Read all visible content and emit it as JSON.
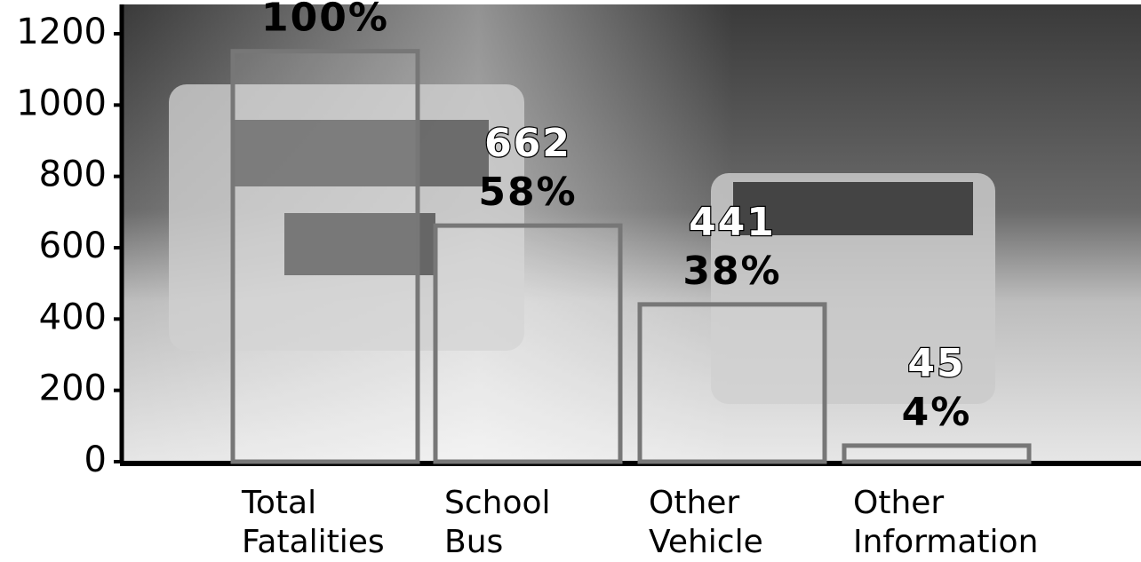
{
  "chart_data": {
    "type": "bar",
    "categories": [
      "Total Fatalities",
      "School Bus",
      "Other Vehicle",
      "Other Information"
    ],
    "values": [
      1151,
      662,
      441,
      45
    ],
    "percent_labels": [
      "100%",
      "58%",
      "38%",
      "4%"
    ],
    "color": "#777777",
    "ylim": [
      0,
      1200
    ],
    "yticks": [
      0,
      200,
      400,
      600,
      800,
      1000,
      1200
    ]
  }
}
